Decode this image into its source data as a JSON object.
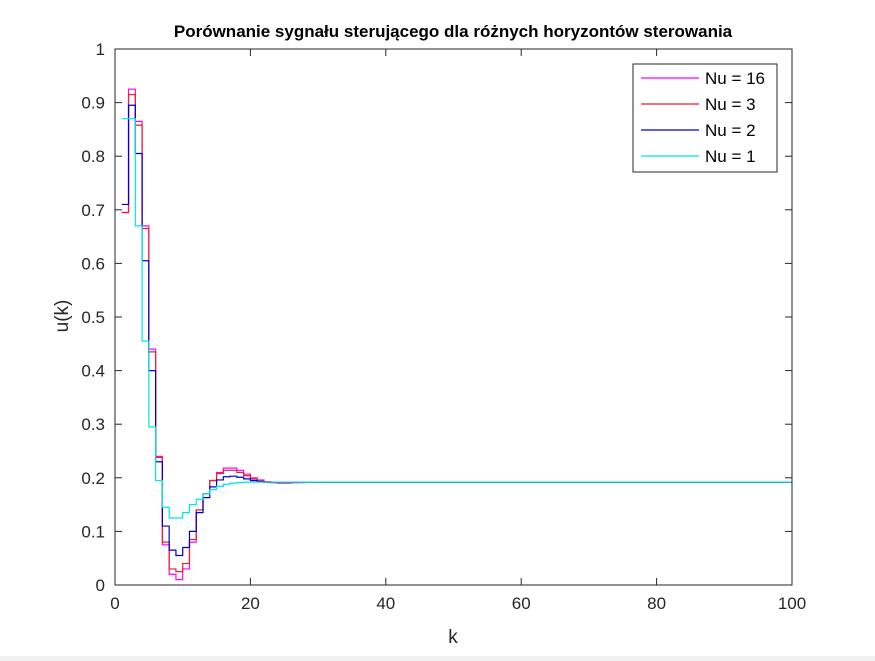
{
  "chart_data": {
    "type": "line",
    "step": true,
    "title": "Porównanie sygnału sterującego dla różnych horyzontów sterowania",
    "xlabel": "k",
    "ylabel": "u(k)",
    "xlim": [
      0,
      100
    ],
    "ylim": [
      0,
      1
    ],
    "xticks": [
      0,
      20,
      40,
      60,
      80,
      100
    ],
    "yticks": [
      0,
      0.1,
      0.2,
      0.3,
      0.4,
      0.5,
      0.6,
      0.7,
      0.8,
      0.9,
      1
    ],
    "grid": false,
    "legend_position": "top-right",
    "x": [
      1,
      2,
      3,
      4,
      5,
      6,
      7,
      8,
      9,
      10,
      11,
      12,
      13,
      14,
      15,
      16,
      17,
      18,
      19,
      20,
      21,
      22,
      23,
      24,
      25,
      26,
      27,
      28,
      29,
      30,
      35,
      40,
      100
    ],
    "series": [
      {
        "name": "Nu = 16",
        "color": "#ff00ff",
        "values": [
          0.695,
          0.925,
          0.865,
          0.67,
          0.44,
          0.24,
          0.075,
          0.02,
          0.01,
          0.03,
          0.08,
          0.14,
          0.17,
          0.195,
          0.21,
          0.218,
          0.218,
          0.214,
          0.207,
          0.2,
          0.196,
          0.193,
          0.191,
          0.19,
          0.19,
          0.191,
          0.191,
          0.192,
          0.192,
          0.192,
          0.192,
          0.192,
          0.192
        ]
      },
      {
        "name": "Nu = 3",
        "color": "#e8202a",
        "values": [
          0.695,
          0.915,
          0.858,
          0.665,
          0.435,
          0.238,
          0.08,
          0.03,
          0.025,
          0.04,
          0.085,
          0.14,
          0.17,
          0.195,
          0.208,
          0.214,
          0.214,
          0.21,
          0.204,
          0.198,
          0.194,
          0.192,
          0.191,
          0.191,
          0.191,
          0.191,
          0.192,
          0.192,
          0.192,
          0.192,
          0.192,
          0.192,
          0.192
        ]
      },
      {
        "name": "Nu = 2",
        "color": "#0000cd",
        "values": [
          0.71,
          0.895,
          0.805,
          0.605,
          0.4,
          0.23,
          0.11,
          0.065,
          0.055,
          0.07,
          0.1,
          0.135,
          0.163,
          0.183,
          0.196,
          0.202,
          0.203,
          0.201,
          0.198,
          0.195,
          0.193,
          0.192,
          0.192,
          0.192,
          0.192,
          0.192,
          0.192,
          0.192,
          0.192,
          0.192,
          0.192,
          0.192,
          0.192
        ]
      },
      {
        "name": "Nu = 1",
        "color": "#00e5e5",
        "values": [
          0.87,
          0.87,
          0.67,
          0.455,
          0.295,
          0.195,
          0.145,
          0.125,
          0.125,
          0.135,
          0.15,
          0.16,
          0.17,
          0.178,
          0.184,
          0.188,
          0.19,
          0.191,
          0.192,
          0.192,
          0.192,
          0.192,
          0.192,
          0.192,
          0.192,
          0.192,
          0.192,
          0.192,
          0.192,
          0.192,
          0.192,
          0.192,
          0.192
        ]
      }
    ]
  }
}
